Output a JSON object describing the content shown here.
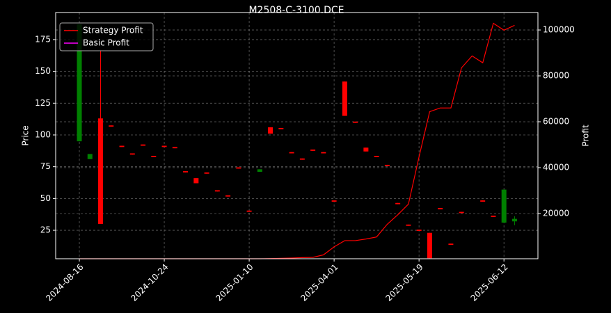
{
  "chart_data": {
    "type": "candlestick",
    "title": "M2508-C-3100.DCE",
    "ylabel": "Price",
    "y2label": "Profit",
    "categories": [
      "2024-08-16",
      null,
      null,
      null,
      null,
      null,
      null,
      null,
      "2024-10-24",
      null,
      null,
      null,
      null,
      null,
      null,
      null,
      "2025-01-10",
      null,
      null,
      null,
      null,
      null,
      null,
      null,
      "2025-04-01",
      null,
      null,
      null,
      null,
      null,
      null,
      null,
      "2025-05-19",
      null,
      null,
      null,
      null,
      null,
      null,
      null,
      "2025-06-12",
      null
    ],
    "open": [
      95,
      81,
      113,
      107.5,
      91.5,
      85.5,
      92.5,
      83.5,
      91.5,
      90.5,
      71.5,
      66,
      70.5,
      56.5,
      52.5,
      74.5,
      40.5,
      71,
      106,
      105.5,
      86.5,
      81.5,
      88.5,
      86.5,
      48.5,
      142,
      110.5,
      90,
      83.5,
      76.5,
      46.5,
      29.5,
      25.5,
      23,
      42.5,
      14.5,
      39.5,
      null,
      48.5,
      36.5,
      31,
      32
    ],
    "high": [
      187,
      85,
      167,
      107.5,
      91.5,
      85.5,
      92.5,
      83.5,
      91.5,
      90.5,
      71.5,
      66,
      70.5,
      56.5,
      52.5,
      74.5,
      40.5,
      73,
      106,
      105.5,
      86.5,
      81.5,
      88.5,
      86.5,
      48.5,
      142,
      110.5,
      90,
      83.5,
      76.5,
      46.5,
      29.5,
      25.5,
      23,
      42.5,
      14.5,
      39.5,
      null,
      48.5,
      36.5,
      57,
      36
    ],
    "low": [
      95,
      81,
      30,
      106.5,
      90.5,
      84.5,
      91.5,
      82.5,
      90.5,
      89.5,
      70.5,
      62,
      69.5,
      55.5,
      51.5,
      73.5,
      39.5,
      71,
      101,
      104.5,
      85.5,
      80.5,
      87.5,
      85.5,
      47.5,
      115,
      109.5,
      87,
      82.5,
      75.5,
      45.5,
      28.5,
      24.5,
      3,
      41.5,
      13.5,
      38.5,
      null,
      47.5,
      35.5,
      31,
      29
    ],
    "close": [
      187,
      85,
      30,
      106.5,
      90.5,
      84.5,
      91.5,
      82.5,
      90.5,
      89.5,
      70.5,
      62,
      69.5,
      55.5,
      51.5,
      73.5,
      39.5,
      73,
      101,
      104.5,
      85.5,
      80.5,
      87.5,
      85.5,
      47.5,
      115,
      109.5,
      87,
      82.5,
      75.5,
      45.5,
      28.5,
      24.5,
      3,
      41.5,
      13.5,
      38.5,
      null,
      47.5,
      35.5,
      57,
      34
    ],
    "up_color": "#008000",
    "down_color": "#ff0000",
    "series": [
      {
        "name": "Strategy Profit",
        "color": "#ff0000",
        "axis": "y2",
        "values": [
          300,
          300,
          300,
          300,
          300,
          300,
          300,
          300,
          300,
          300,
          300,
          300,
          300,
          300,
          300,
          300,
          300,
          300,
          400,
          500,
          600,
          800,
          900,
          2000,
          5500,
          8200,
          8200,
          8900,
          9800,
          15300,
          19500,
          24100,
          44700,
          64400,
          66000,
          66000,
          83500,
          88700,
          85700,
          102900,
          99900,
          102000
        ]
      },
      {
        "name": "Basic Profit",
        "color": "#ff00ff",
        "axis": "y2",
        "values": [
          null,
          null,
          null,
          null,
          null,
          null,
          null,
          null,
          null,
          null,
          null,
          null,
          null,
          null,
          null,
          null,
          null,
          null,
          null,
          null,
          null,
          null,
          null,
          null,
          null,
          null,
          null,
          null,
          null,
          null,
          null,
          null,
          null,
          null,
          null,
          null,
          null,
          null,
          null,
          null,
          null,
          null
        ]
      }
    ],
    "xlim": [
      -2.23,
      43.2
    ],
    "ylim": [
      2.6,
      196.3
    ],
    "yticks": [
      25,
      50,
      75,
      100,
      125,
      150,
      175
    ],
    "y2lim": [
      300,
      107600
    ],
    "y2ticks": [
      20000,
      40000,
      60000,
      80000,
      100000
    ],
    "grid": true,
    "legend": "upper left"
  }
}
